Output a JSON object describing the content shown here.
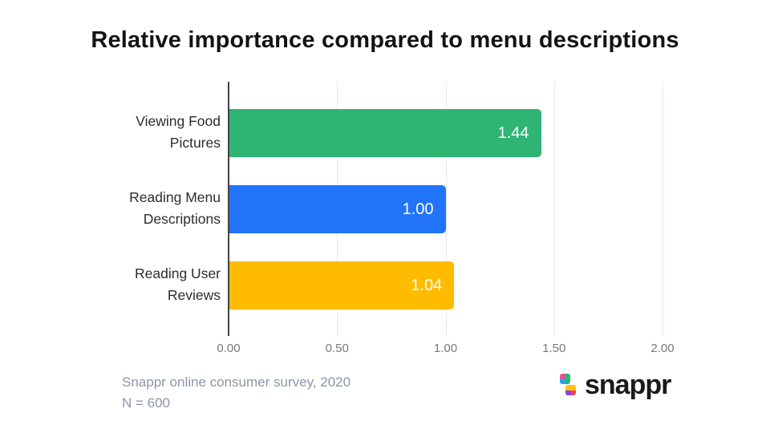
{
  "chart_data": {
    "type": "bar",
    "orientation": "horizontal",
    "title": "Relative importance compared to menu descriptions",
    "categories": [
      "Viewing Food\nPictures",
      "Reading Menu\nDescriptions",
      "Reading User\nReviews"
    ],
    "values": [
      1.44,
      1.0,
      1.04
    ],
    "value_labels": [
      "1.44",
      "1.00",
      "1.04"
    ],
    "bar_colors": [
      "#2eb573",
      "#2173fa",
      "#ffbb00"
    ],
    "value_label_color": "#ffffff",
    "xlim": [
      0,
      2
    ],
    "xticks": [
      0,
      0.5,
      1,
      1.5,
      2
    ],
    "xtick_labels": [
      "0.00",
      "0.50",
      "1.00",
      "1.50",
      "2.00"
    ],
    "grid": "vertical-light",
    "legend": "none"
  },
  "footer": {
    "source": "Snappr online consumer survey, 2020",
    "sample": "N = 600"
  },
  "logo": {
    "text": "snappr",
    "icon": "snappr-mark",
    "icon_colors": {
      "pink": "#f64c8b",
      "blue": "#22a6f2",
      "green": "#2bb673",
      "yellow": "#ffc20d",
      "purple": "#8b3ff0",
      "red": "#f43e5c"
    }
  },
  "colors": {
    "background": "#ffffff",
    "title": "#131313",
    "axis_line": "#424242",
    "grid_line": "#e4e9f2",
    "tick_label": "#777777",
    "category_label": "#2d2d2d",
    "footer_text": "#8d94a3",
    "logo_text": "#1b1b1d"
  }
}
